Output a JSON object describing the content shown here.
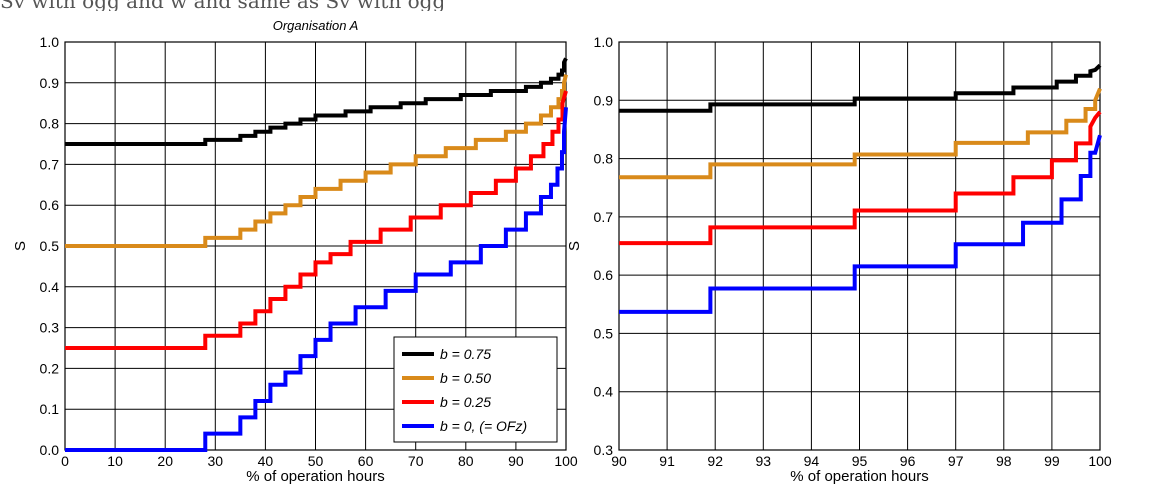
{
  "page_caption": "Sv with ogg and w and same as Sv with ogg",
  "colors": {
    "b075": "#000000",
    "b050": "#d98a1a",
    "b025": "#ff0000",
    "b0": "#0000ff"
  },
  "chart_data": [
    {
      "type": "line",
      "title": "Organisation A",
      "xlabel": "% of operation hours",
      "ylabel": "S",
      "xlim": [
        0,
        100
      ],
      "ylim": [
        0,
        1
      ],
      "grid": true,
      "legend_position": "bottom-right",
      "x_ticks": [
        "0",
        "10",
        "20",
        "30",
        "40",
        "50",
        "60",
        "70",
        "80",
        "90",
        "100"
      ],
      "y_ticks": [
        "0.0",
        "0.1",
        "0.2",
        "0.3",
        "0.4",
        "0.5",
        "0.6",
        "0.7",
        "0.8",
        "0.9",
        "1.0"
      ],
      "series": [
        {
          "name": "b = 0.75",
          "color": "#000000",
          "step": true,
          "points": [
            [
              0,
              0.75
            ],
            [
              28,
              0.75
            ],
            [
              28,
              0.76
            ],
            [
              35,
              0.76
            ],
            [
              35,
              0.77
            ],
            [
              38,
              0.77
            ],
            [
              38,
              0.78
            ],
            [
              41,
              0.78
            ],
            [
              41,
              0.79
            ],
            [
              44,
              0.79
            ],
            [
              44,
              0.8
            ],
            [
              47,
              0.8
            ],
            [
              47,
              0.81
            ],
            [
              50,
              0.81
            ],
            [
              50,
              0.82
            ],
            [
              56,
              0.82
            ],
            [
              56,
              0.83
            ],
            [
              61,
              0.83
            ],
            [
              61,
              0.84
            ],
            [
              67,
              0.84
            ],
            [
              67,
              0.85
            ],
            [
              72,
              0.85
            ],
            [
              72,
              0.86
            ],
            [
              79,
              0.86
            ],
            [
              79,
              0.87
            ],
            [
              85,
              0.87
            ],
            [
              85,
              0.88
            ],
            [
              92,
              0.88
            ],
            [
              92,
              0.89
            ],
            [
              95,
              0.89
            ],
            [
              95,
              0.9
            ],
            [
              97,
              0.9
            ],
            [
              97,
              0.91
            ],
            [
              98.5,
              0.91
            ],
            [
              98.5,
              0.92
            ],
            [
              99.2,
              0.92
            ],
            [
              99.2,
              0.93
            ],
            [
              99.6,
              0.93
            ],
            [
              99.6,
              0.95
            ],
            [
              100,
              0.96
            ]
          ]
        },
        {
          "name": "b = 0.50",
          "color": "#d98a1a",
          "step": true,
          "points": [
            [
              0,
              0.5
            ],
            [
              28,
              0.5
            ],
            [
              28,
              0.52
            ],
            [
              35,
              0.52
            ],
            [
              35,
              0.54
            ],
            [
              38,
              0.54
            ],
            [
              38,
              0.56
            ],
            [
              41,
              0.56
            ],
            [
              41,
              0.58
            ],
            [
              44,
              0.58
            ],
            [
              44,
              0.6
            ],
            [
              47,
              0.6
            ],
            [
              47,
              0.62
            ],
            [
              50,
              0.62
            ],
            [
              50,
              0.64
            ],
            [
              55,
              0.64
            ],
            [
              55,
              0.66
            ],
            [
              60,
              0.66
            ],
            [
              60,
              0.68
            ],
            [
              65,
              0.68
            ],
            [
              65,
              0.7
            ],
            [
              70,
              0.7
            ],
            [
              70,
              0.72
            ],
            [
              76,
              0.72
            ],
            [
              76,
              0.74
            ],
            [
              82,
              0.74
            ],
            [
              82,
              0.76
            ],
            [
              88,
              0.76
            ],
            [
              88,
              0.78
            ],
            [
              92,
              0.78
            ],
            [
              92,
              0.8
            ],
            [
              95,
              0.8
            ],
            [
              95,
              0.82
            ],
            [
              97,
              0.82
            ],
            [
              97,
              0.84
            ],
            [
              98.5,
              0.84
            ],
            [
              98.5,
              0.86
            ],
            [
              99.2,
              0.86
            ],
            [
              99.2,
              0.88
            ],
            [
              99.6,
              0.88
            ],
            [
              99.6,
              0.9
            ],
            [
              100,
              0.92
            ]
          ]
        },
        {
          "name": "b = 0.25",
          "color": "#ff0000",
          "step": true,
          "points": [
            [
              0,
              0.25
            ],
            [
              28,
              0.25
            ],
            [
              28,
              0.28
            ],
            [
              35,
              0.28
            ],
            [
              35,
              0.31
            ],
            [
              38,
              0.31
            ],
            [
              38,
              0.34
            ],
            [
              41,
              0.34
            ],
            [
              41,
              0.37
            ],
            [
              44,
              0.37
            ],
            [
              44,
              0.4
            ],
            [
              47,
              0.4
            ],
            [
              47,
              0.43
            ],
            [
              50,
              0.43
            ],
            [
              50,
              0.46
            ],
            [
              53,
              0.46
            ],
            [
              53,
              0.48
            ],
            [
              57,
              0.48
            ],
            [
              57,
              0.51
            ],
            [
              63,
              0.51
            ],
            [
              63,
              0.54
            ],
            [
              69,
              0.54
            ],
            [
              69,
              0.57
            ],
            [
              75,
              0.57
            ],
            [
              75,
              0.6
            ],
            [
              81,
              0.6
            ],
            [
              81,
              0.63
            ],
            [
              86,
              0.63
            ],
            [
              86,
              0.66
            ],
            [
              90,
              0.66
            ],
            [
              90,
              0.69
            ],
            [
              93,
              0.69
            ],
            [
              93,
              0.72
            ],
            [
              95.5,
              0.72
            ],
            [
              95.5,
              0.75
            ],
            [
              97.3,
              0.75
            ],
            [
              97.3,
              0.78
            ],
            [
              98.5,
              0.78
            ],
            [
              98.5,
              0.81
            ],
            [
              99.3,
              0.81
            ],
            [
              99.3,
              0.85
            ],
            [
              100,
              0.88
            ]
          ]
        },
        {
          "name": "b = 0, (= OFz)",
          "color": "#0000ff",
          "step": true,
          "points": [
            [
              0,
              0.0
            ],
            [
              28,
              0.0
            ],
            [
              28,
              0.04
            ],
            [
              35,
              0.04
            ],
            [
              35,
              0.08
            ],
            [
              38,
              0.08
            ],
            [
              38,
              0.12
            ],
            [
              41,
              0.12
            ],
            [
              41,
              0.16
            ],
            [
              44,
              0.16
            ],
            [
              44,
              0.19
            ],
            [
              47,
              0.19
            ],
            [
              47,
              0.23
            ],
            [
              50,
              0.23
            ],
            [
              50,
              0.27
            ],
            [
              53,
              0.27
            ],
            [
              53,
              0.31
            ],
            [
              58,
              0.31
            ],
            [
              58,
              0.35
            ],
            [
              64,
              0.35
            ],
            [
              64,
              0.39
            ],
            [
              70,
              0.39
            ],
            [
              70,
              0.43
            ],
            [
              77,
              0.43
            ],
            [
              77,
              0.46
            ],
            [
              83,
              0.46
            ],
            [
              83,
              0.5
            ],
            [
              88,
              0.5
            ],
            [
              88,
              0.54
            ],
            [
              92,
              0.54
            ],
            [
              92,
              0.58
            ],
            [
              95,
              0.58
            ],
            [
              95,
              0.62
            ],
            [
              97,
              0.62
            ],
            [
              97,
              0.65
            ],
            [
              98.3,
              0.65
            ],
            [
              98.3,
              0.69
            ],
            [
              99.2,
              0.69
            ],
            [
              99.2,
              0.73
            ],
            [
              99.6,
              0.73
            ],
            [
              99.6,
              0.78
            ],
            [
              100,
              0.84
            ]
          ]
        }
      ]
    },
    {
      "type": "line",
      "title": "",
      "xlabel": "% of operation hours",
      "ylabel": "S",
      "xlim": [
        90,
        100
      ],
      "ylim": [
        0.3,
        1
      ],
      "grid": true,
      "x_ticks": [
        "90",
        "91",
        "92",
        "93",
        "94",
        "95",
        "96",
        "97",
        "98",
        "99",
        "100"
      ],
      "y_ticks": [
        "0.3",
        "0.4",
        "0.5",
        "0.6",
        "0.7",
        "0.8",
        "0.9",
        "1.0"
      ],
      "series": [
        {
          "color": "#000000",
          "step": true,
          "points": [
            [
              90,
              0.882
            ],
            [
              91.9,
              0.882
            ],
            [
              91.9,
              0.893
            ],
            [
              94.9,
              0.893
            ],
            [
              94.9,
              0.903
            ],
            [
              97,
              0.903
            ],
            [
              97,
              0.912
            ],
            [
              98.2,
              0.912
            ],
            [
              98.2,
              0.922
            ],
            [
              99.1,
              0.922
            ],
            [
              99.1,
              0.932
            ],
            [
              99.5,
              0.932
            ],
            [
              99.5,
              0.942
            ],
            [
              99.8,
              0.942
            ],
            [
              99.8,
              0.95
            ],
            [
              99.9,
              0.952
            ],
            [
              100,
              0.96
            ]
          ]
        },
        {
          "color": "#d98a1a",
          "step": true,
          "points": [
            [
              90,
              0.768
            ],
            [
              91.9,
              0.768
            ],
            [
              91.9,
              0.79
            ],
            [
              94.9,
              0.79
            ],
            [
              94.9,
              0.807
            ],
            [
              97,
              0.807
            ],
            [
              97,
              0.827
            ],
            [
              98.5,
              0.827
            ],
            [
              98.5,
              0.845
            ],
            [
              99.3,
              0.845
            ],
            [
              99.3,
              0.865
            ],
            [
              99.7,
              0.865
            ],
            [
              99.7,
              0.885
            ],
            [
              99.9,
              0.885
            ],
            [
              99.9,
              0.9
            ],
            [
              100,
              0.92
            ]
          ]
        },
        {
          "color": "#ff0000",
          "step": true,
          "points": [
            [
              90,
              0.655
            ],
            [
              91.9,
              0.655
            ],
            [
              91.9,
              0.682
            ],
            [
              94.9,
              0.682
            ],
            [
              94.9,
              0.711
            ],
            [
              97,
              0.711
            ],
            [
              97,
              0.74
            ],
            [
              98.2,
              0.74
            ],
            [
              98.2,
              0.768
            ],
            [
              99,
              0.768
            ],
            [
              99,
              0.797
            ],
            [
              99.5,
              0.797
            ],
            [
              99.5,
              0.826
            ],
            [
              99.8,
              0.826
            ],
            [
              99.8,
              0.855
            ],
            [
              99.9,
              0.87
            ],
            [
              100,
              0.88
            ]
          ]
        },
        {
          "color": "#0000ff",
          "step": true,
          "points": [
            [
              90,
              0.537
            ],
            [
              91.9,
              0.537
            ],
            [
              91.9,
              0.577
            ],
            [
              94.9,
              0.577
            ],
            [
              94.9,
              0.615
            ],
            [
              97,
              0.615
            ],
            [
              97,
              0.653
            ],
            [
              98.4,
              0.653
            ],
            [
              98.4,
              0.69
            ],
            [
              99.2,
              0.69
            ],
            [
              99.2,
              0.73
            ],
            [
              99.6,
              0.73
            ],
            [
              99.6,
              0.77
            ],
            [
              99.8,
              0.77
            ],
            [
              99.8,
              0.81
            ],
            [
              99.9,
              0.81
            ],
            [
              100,
              0.84
            ]
          ]
        }
      ]
    }
  ]
}
